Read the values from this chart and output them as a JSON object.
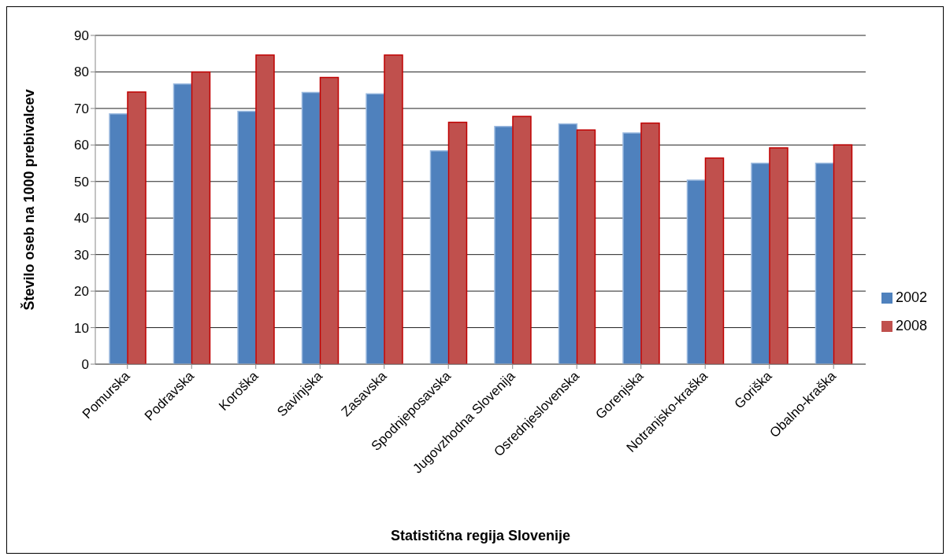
{
  "chart_data": {
    "type": "bar",
    "xlabel": "Statistična regija Slovenije",
    "ylabel": "Število oseb na 1000 prebivalcev",
    "categories": [
      "Pomurska",
      "Podravska",
      "Koroška",
      "Savinjska",
      "Zasavska",
      "Spodnjeposavska",
      "Jugovzhodna Slovenija",
      "Osrednjeslovenska",
      "Gorenjska",
      "Notranjsko-kraška",
      "Goriška",
      "Obalno-kraška"
    ],
    "series": [
      {
        "name": "2002",
        "color": "#4f81bd",
        "values": [
          68.5,
          76.7,
          69.2,
          74.4,
          74,
          58.4,
          65.1,
          65.8,
          63.3,
          50.4,
          55,
          55
        ]
      },
      {
        "name": "2008",
        "color": "#c0504d",
        "values": [
          74.5,
          80,
          84.6,
          78.5,
          84.6,
          66.2,
          67.8,
          64.1,
          66,
          56.4,
          59.2,
          60
        ]
      }
    ],
    "ylim": [
      0,
      90
    ],
    "yticks": [
      0,
      10,
      20,
      30,
      40,
      50,
      60,
      70,
      80,
      90
    ],
    "grid": "y",
    "legend": "right"
  }
}
